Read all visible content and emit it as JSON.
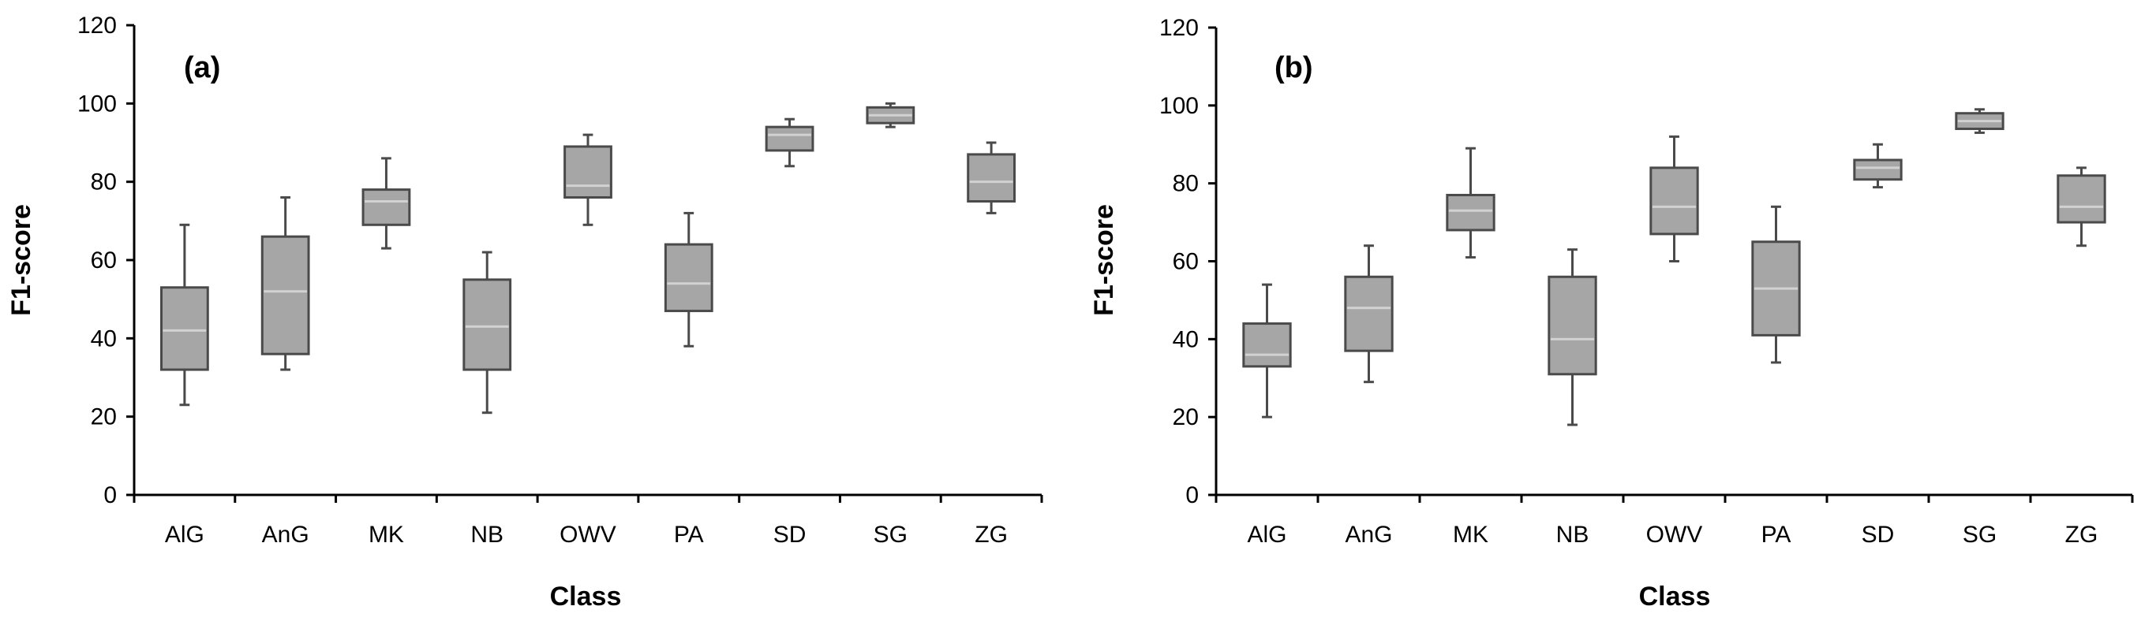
{
  "chart_data": [
    {
      "type": "box",
      "panel_label": "(a)",
      "xlabel": "Class",
      "ylabel": "F1-score",
      "ylim": [
        0,
        120
      ],
      "yticks": [
        "0",
        "20",
        "40",
        "60",
        "80",
        "100",
        "120"
      ],
      "categories": [
        "AlG",
        "AnG",
        "MK",
        "NB",
        "OWV",
        "PA",
        "SD",
        "SG",
        "ZG"
      ],
      "boxes": [
        {
          "min": 23,
          "q1": 32,
          "median": 42,
          "q3": 53,
          "max": 69
        },
        {
          "min": 32,
          "q1": 36,
          "median": 52,
          "q3": 66,
          "max": 76
        },
        {
          "min": 63,
          "q1": 69,
          "median": 75,
          "q3": 78,
          "max": 86
        },
        {
          "min": 21,
          "q1": 32,
          "median": 43,
          "q3": 55,
          "max": 62
        },
        {
          "min": 69,
          "q1": 76,
          "median": 79,
          "q3": 89,
          "max": 92
        },
        {
          "min": 38,
          "q1": 47,
          "median": 54,
          "q3": 64,
          "max": 72
        },
        {
          "min": 84,
          "q1": 88,
          "median": 92,
          "q3": 94,
          "max": 96
        },
        {
          "min": 94,
          "q1": 95,
          "median": 97,
          "q3": 99,
          "max": 100
        },
        {
          "min": 72,
          "q1": 75,
          "median": 80,
          "q3": 87,
          "max": 90
        }
      ]
    },
    {
      "type": "box",
      "panel_label": "(b)",
      "xlabel": "Class",
      "ylabel": "F1-score",
      "ylim": [
        0,
        120
      ],
      "yticks": [
        "0",
        "20",
        "40",
        "60",
        "80",
        "100",
        "120"
      ],
      "categories": [
        "AlG",
        "AnG",
        "MK",
        "NB",
        "OWV",
        "PA",
        "SD",
        "SG",
        "ZG"
      ],
      "boxes": [
        {
          "min": 20,
          "q1": 33,
          "median": 36,
          "q3": 44,
          "max": 54
        },
        {
          "min": 29,
          "q1": 37,
          "median": 48,
          "q3": 56,
          "max": 64
        },
        {
          "min": 61,
          "q1": 68,
          "median": 73,
          "q3": 77,
          "max": 89
        },
        {
          "min": 18,
          "q1": 31,
          "median": 40,
          "q3": 56,
          "max": 63
        },
        {
          "min": 60,
          "q1": 67,
          "median": 74,
          "q3": 84,
          "max": 92
        },
        {
          "min": 34,
          "q1": 41,
          "median": 53,
          "q3": 65,
          "max": 74
        },
        {
          "min": 79,
          "q1": 81,
          "median": 84,
          "q3": 86,
          "max": 90
        },
        {
          "min": 93,
          "q1": 94,
          "median": 96,
          "q3": 98,
          "max": 99
        },
        {
          "min": 64,
          "q1": 70,
          "median": 74,
          "q3": 82,
          "max": 84
        }
      ]
    }
  ],
  "style": {
    "box_fill": "#a6a6a6",
    "box_stroke": "#4a4a4a",
    "median_color": "#d2d2d2",
    "axis_color": "#000000"
  }
}
